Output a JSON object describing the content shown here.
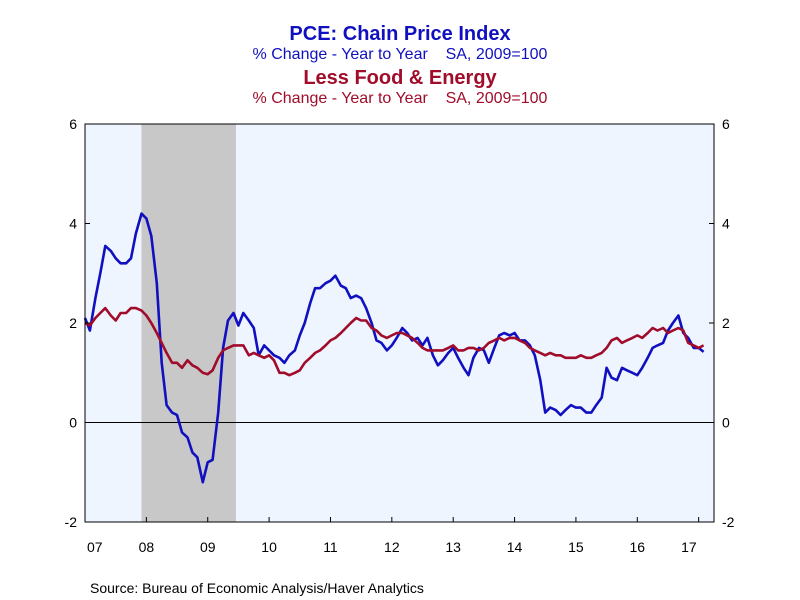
{
  "titles": {
    "series1_title": "PCE: Chain Price Index",
    "series1_subtitle": "% Change - Year to Year    SA, 2009=100",
    "series2_title": "Less Food & Energy",
    "series2_subtitle": "% Change - Year to Year    SA, 2009=100"
  },
  "source": "Source:  Bureau of Economic Analysis/Haver Analytics",
  "colors": {
    "series1": "#1010c0",
    "series2": "#a00c2a",
    "plot_background": "#eef5ff",
    "recession_shade": "#c8c8c8",
    "page_background": "#ffffff"
  },
  "chart_data": {
    "type": "line",
    "xlim": [
      2007.0,
      2017.25
    ],
    "ylim": [
      -2,
      6
    ],
    "x_ticks": [
      {
        "label": "07",
        "value": 2007.0
      },
      {
        "label": "08",
        "value": 2008.0
      },
      {
        "label": "09",
        "value": 2009.0
      },
      {
        "label": "10",
        "value": 2010.0
      },
      {
        "label": "11",
        "value": 2011.0
      },
      {
        "label": "12",
        "value": 2012.0
      },
      {
        "label": "13",
        "value": 2013.0
      },
      {
        "label": "14",
        "value": 2014.0
      },
      {
        "label": "15",
        "value": 2015.0
      },
      {
        "label": "16",
        "value": 2016.0
      },
      {
        "label": "17",
        "value": 2017.0
      }
    ],
    "y_ticks": [
      "-2",
      "0",
      "2",
      "4",
      "6"
    ],
    "recession": [
      2007.92,
      2009.46
    ],
    "grid": false,
    "series": [
      {
        "name": "PCE: Chain Price Index",
        "x": [
          2007.0,
          2007.08,
          2007.17,
          2007.25,
          2007.33,
          2007.42,
          2007.5,
          2007.58,
          2007.67,
          2007.75,
          2007.83,
          2007.92,
          2008.0,
          2008.08,
          2008.17,
          2008.25,
          2008.33,
          2008.42,
          2008.5,
          2008.58,
          2008.67,
          2008.75,
          2008.83,
          2008.92,
          2009.0,
          2009.08,
          2009.17,
          2009.25,
          2009.33,
          2009.42,
          2009.5,
          2009.58,
          2009.67,
          2009.75,
          2009.83,
          2009.92,
          2010.0,
          2010.08,
          2010.17,
          2010.25,
          2010.33,
          2010.42,
          2010.5,
          2010.58,
          2010.67,
          2010.75,
          2010.83,
          2010.92,
          2011.0,
          2011.08,
          2011.17,
          2011.25,
          2011.33,
          2011.42,
          2011.5,
          2011.58,
          2011.67,
          2011.75,
          2011.83,
          2011.92,
          2012.0,
          2012.08,
          2012.17,
          2012.25,
          2012.33,
          2012.42,
          2012.5,
          2012.58,
          2012.67,
          2012.75,
          2012.83,
          2012.92,
          2013.0,
          2013.08,
          2013.17,
          2013.25,
          2013.33,
          2013.42,
          2013.5,
          2013.58,
          2013.67,
          2013.75,
          2013.83,
          2013.92,
          2014.0,
          2014.08,
          2014.17,
          2014.25,
          2014.33,
          2014.42,
          2014.5,
          2014.58,
          2014.67,
          2014.75,
          2014.83,
          2014.92,
          2015.0,
          2015.08,
          2015.17,
          2015.25,
          2015.33,
          2015.42,
          2015.5,
          2015.58,
          2015.67,
          2015.75,
          2015.83,
          2015.92,
          2016.0,
          2016.08,
          2016.17,
          2016.25,
          2016.33,
          2016.42,
          2016.5,
          2016.58,
          2016.67,
          2016.75,
          2016.83,
          2016.92,
          2017.0,
          2017.08
        ],
        "values": [
          2.1,
          1.85,
          2.5,
          3.0,
          3.55,
          3.45,
          3.3,
          3.2,
          3.2,
          3.3,
          3.8,
          4.2,
          4.1,
          3.75,
          2.8,
          1.2,
          0.35,
          0.2,
          0.15,
          -0.2,
          -0.3,
          -0.6,
          -0.7,
          -1.2,
          -0.8,
          -0.75,
          0.2,
          1.5,
          2.05,
          2.2,
          1.95,
          2.2,
          2.05,
          1.9,
          1.35,
          1.55,
          1.45,
          1.35,
          1.3,
          1.2,
          1.35,
          1.45,
          1.75,
          2.0,
          2.4,
          2.7,
          2.7,
          2.8,
          2.85,
          2.95,
          2.75,
          2.7,
          2.5,
          2.55,
          2.5,
          2.3,
          2.0,
          1.65,
          1.6,
          1.45,
          1.55,
          1.7,
          1.9,
          1.8,
          1.65,
          1.7,
          1.55,
          1.7,
          1.35,
          1.15,
          1.25,
          1.4,
          1.5,
          1.3,
          1.1,
          0.95,
          1.3,
          1.5,
          1.45,
          1.2,
          1.5,
          1.75,
          1.8,
          1.75,
          1.8,
          1.65,
          1.65,
          1.55,
          1.35,
          0.85,
          0.2,
          0.3,
          0.25,
          0.15,
          0.25,
          0.35,
          0.3,
          0.3,
          0.2,
          0.2,
          0.35,
          0.5,
          1.1,
          0.9,
          0.85,
          1.1,
          1.05,
          1.0,
          0.95,
          1.1,
          1.3,
          1.5,
          1.55,
          1.6,
          1.85,
          2.0,
          2.15,
          1.8,
          1.7,
          1.5,
          1.5,
          1.42
        ]
      },
      {
        "name": "Less Food & Energy",
        "x": [
          2007.0,
          2007.08,
          2007.17,
          2007.25,
          2007.33,
          2007.42,
          2007.5,
          2007.58,
          2007.67,
          2007.75,
          2007.83,
          2007.92,
          2008.0,
          2008.08,
          2008.17,
          2008.25,
          2008.33,
          2008.42,
          2008.5,
          2008.58,
          2008.67,
          2008.75,
          2008.83,
          2008.92,
          2009.0,
          2009.08,
          2009.17,
          2009.25,
          2009.33,
          2009.42,
          2009.5,
          2009.58,
          2009.67,
          2009.75,
          2009.83,
          2009.92,
          2010.0,
          2010.08,
          2010.17,
          2010.25,
          2010.33,
          2010.42,
          2010.5,
          2010.58,
          2010.67,
          2010.75,
          2010.83,
          2010.92,
          2011.0,
          2011.08,
          2011.17,
          2011.25,
          2011.33,
          2011.42,
          2011.5,
          2011.58,
          2011.67,
          2011.75,
          2011.83,
          2011.92,
          2012.0,
          2012.08,
          2012.17,
          2012.25,
          2012.33,
          2012.42,
          2012.5,
          2012.58,
          2012.67,
          2012.75,
          2012.83,
          2012.92,
          2013.0,
          2013.08,
          2013.17,
          2013.25,
          2013.33,
          2013.42,
          2013.5,
          2013.58,
          2013.67,
          2013.75,
          2013.83,
          2013.92,
          2014.0,
          2014.08,
          2014.17,
          2014.25,
          2014.33,
          2014.42,
          2014.5,
          2014.58,
          2014.67,
          2014.75,
          2014.83,
          2014.92,
          2015.0,
          2015.08,
          2015.17,
          2015.25,
          2015.33,
          2015.42,
          2015.5,
          2015.58,
          2015.67,
          2015.75,
          2015.83,
          2015.92,
          2016.0,
          2016.08,
          2016.17,
          2016.25,
          2016.33,
          2016.42,
          2016.5,
          2016.58,
          2016.67,
          2016.75,
          2016.83,
          2016.92,
          2017.0,
          2017.08
        ],
        "values": [
          2.0,
          1.95,
          2.1,
          2.2,
          2.3,
          2.15,
          2.05,
          2.2,
          2.2,
          2.3,
          2.3,
          2.25,
          2.15,
          2.0,
          1.8,
          1.6,
          1.4,
          1.2,
          1.2,
          1.1,
          1.25,
          1.15,
          1.1,
          1.0,
          0.97,
          1.05,
          1.3,
          1.45,
          1.5,
          1.55,
          1.55,
          1.55,
          1.35,
          1.4,
          1.35,
          1.3,
          1.35,
          1.25,
          1.0,
          1.0,
          0.95,
          1.0,
          1.05,
          1.2,
          1.3,
          1.4,
          1.45,
          1.55,
          1.65,
          1.7,
          1.8,
          1.9,
          2.0,
          2.1,
          2.05,
          2.05,
          1.9,
          1.85,
          1.75,
          1.7,
          1.75,
          1.8,
          1.8,
          1.75,
          1.7,
          1.6,
          1.5,
          1.45,
          1.45,
          1.45,
          1.45,
          1.5,
          1.55,
          1.45,
          1.45,
          1.5,
          1.5,
          1.45,
          1.5,
          1.6,
          1.65,
          1.7,
          1.65,
          1.7,
          1.7,
          1.65,
          1.6,
          1.5,
          1.45,
          1.4,
          1.35,
          1.4,
          1.35,
          1.35,
          1.3,
          1.3,
          1.3,
          1.35,
          1.3,
          1.3,
          1.35,
          1.4,
          1.5,
          1.65,
          1.7,
          1.6,
          1.65,
          1.7,
          1.75,
          1.7,
          1.8,
          1.9,
          1.85,
          1.9,
          1.8,
          1.85,
          1.9,
          1.85,
          1.6,
          1.55,
          1.5,
          1.55
        ]
      }
    ]
  }
}
